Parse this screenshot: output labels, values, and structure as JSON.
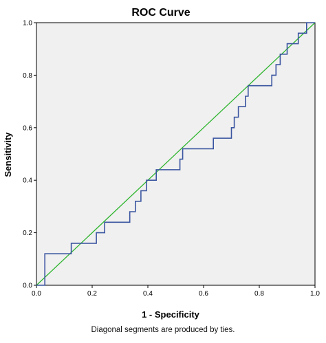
{
  "chart_data": {
    "type": "line",
    "title": "ROC Curve",
    "xlabel": "1 - Specificity",
    "ylabel": "Sensitivity",
    "xlim": [
      0.0,
      1.0
    ],
    "ylim": [
      0.0,
      1.0
    ],
    "xticks": [
      "0.0",
      "0.2",
      "0.4",
      "0.6",
      "0.8",
      "1.0"
    ],
    "yticks": [
      "0.0",
      "0.2",
      "0.4",
      "0.6",
      "0.8",
      "1.0"
    ],
    "grid": false,
    "background": "#f0f0f0",
    "series": [
      {
        "color": "#3a55a0",
        "points": [
          [
            0.0,
            0.0
          ],
          [
            0.03,
            0.0
          ],
          [
            0.03,
            0.12
          ],
          [
            0.125,
            0.12
          ],
          [
            0.125,
            0.16
          ],
          [
            0.215,
            0.16
          ],
          [
            0.215,
            0.2
          ],
          [
            0.245,
            0.2
          ],
          [
            0.245,
            0.24
          ],
          [
            0.335,
            0.24
          ],
          [
            0.335,
            0.28
          ],
          [
            0.355,
            0.28
          ],
          [
            0.355,
            0.32
          ],
          [
            0.375,
            0.32
          ],
          [
            0.375,
            0.36
          ],
          [
            0.395,
            0.36
          ],
          [
            0.395,
            0.4
          ],
          [
            0.43,
            0.4
          ],
          [
            0.43,
            0.44
          ],
          [
            0.515,
            0.44
          ],
          [
            0.515,
            0.48
          ],
          [
            0.525,
            0.48
          ],
          [
            0.525,
            0.52
          ],
          [
            0.635,
            0.52
          ],
          [
            0.635,
            0.56
          ],
          [
            0.7,
            0.56
          ],
          [
            0.7,
            0.6
          ],
          [
            0.71,
            0.6
          ],
          [
            0.71,
            0.64
          ],
          [
            0.725,
            0.64
          ],
          [
            0.725,
            0.68
          ],
          [
            0.75,
            0.68
          ],
          [
            0.75,
            0.72
          ],
          [
            0.76,
            0.72
          ],
          [
            0.76,
            0.76
          ],
          [
            0.845,
            0.76
          ],
          [
            0.845,
            0.8
          ],
          [
            0.86,
            0.8
          ],
          [
            0.86,
            0.84
          ],
          [
            0.875,
            0.84
          ],
          [
            0.875,
            0.88
          ],
          [
            0.9,
            0.88
          ],
          [
            0.9,
            0.92
          ],
          [
            0.94,
            0.92
          ],
          [
            0.94,
            0.96
          ],
          [
            0.97,
            0.96
          ],
          [
            0.97,
            1.0
          ],
          [
            1.0,
            1.0
          ]
        ]
      },
      {
        "color": "#2fb52f",
        "points": [
          [
            0.0,
            0.0
          ],
          [
            1.0,
            1.0
          ]
        ]
      }
    ]
  },
  "footnote": "Diagonal segments are produced by ties."
}
